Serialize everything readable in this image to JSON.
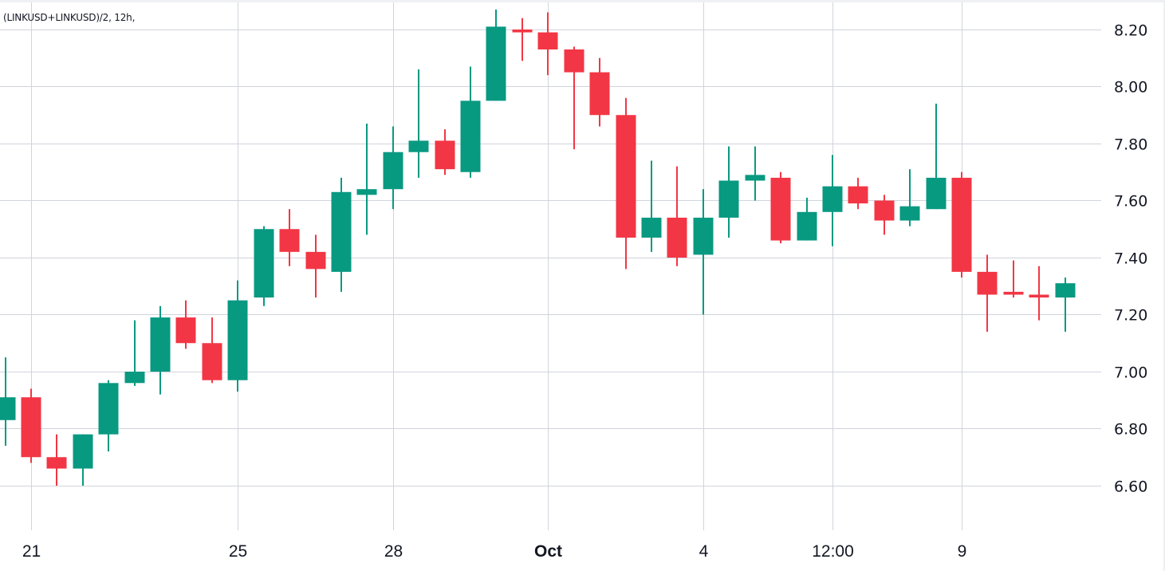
{
  "legend": {
    "title": "(LINKUSD+LINKUSD)/2, 12h,"
  },
  "colors": {
    "up": "#089981",
    "down": "#F23645",
    "grid": "#d1d4dc",
    "text": "#131722",
    "background": "#ffffff"
  },
  "chart_data": {
    "type": "candlestick",
    "title": "(LINKUSD+LINKUSD)/2, 12h",
    "interval": "12h",
    "xlabel": "",
    "ylabel": "",
    "ylim": [
      6.45,
      8.28
    ],
    "grid": true,
    "y_ticks": [
      "8.20",
      "8.00",
      "7.80",
      "7.60",
      "7.40",
      "7.20",
      "7.00",
      "6.80",
      "6.60"
    ],
    "x_ticks": [
      {
        "label": "21",
        "candle_index": 1,
        "bold": false
      },
      {
        "label": "25",
        "candle_index": 9,
        "bold": false
      },
      {
        "label": "28",
        "candle_index": 15,
        "bold": false
      },
      {
        "label": "Oct",
        "candle_index": 21,
        "bold": true
      },
      {
        "label": "4",
        "candle_index": 27,
        "bold": false
      },
      {
        "label": "12:00",
        "candle_index": 32,
        "bold": false
      },
      {
        "label": "9",
        "candle_index": 37,
        "bold": false
      }
    ],
    "candles": [
      {
        "o": 6.83,
        "h": 7.05,
        "l": 6.74,
        "c": 6.91
      },
      {
        "o": 6.91,
        "h": 6.94,
        "l": 6.68,
        "c": 6.7
      },
      {
        "o": 6.7,
        "h": 6.78,
        "l": 6.6,
        "c": 6.66
      },
      {
        "o": 6.66,
        "h": 6.78,
        "l": 6.6,
        "c": 6.78
      },
      {
        "o": 6.78,
        "h": 6.97,
        "l": 6.72,
        "c": 6.96
      },
      {
        "o": 6.96,
        "h": 7.18,
        "l": 6.95,
        "c": 7.0
      },
      {
        "o": 7.0,
        "h": 7.23,
        "l": 6.92,
        "c": 7.19
      },
      {
        "o": 7.19,
        "h": 7.25,
        "l": 7.08,
        "c": 7.1
      },
      {
        "o": 7.1,
        "h": 7.19,
        "l": 6.96,
        "c": 6.97
      },
      {
        "o": 6.97,
        "h": 7.32,
        "l": 6.93,
        "c": 7.25
      },
      {
        "o": 7.26,
        "h": 7.51,
        "l": 7.23,
        "c": 7.5
      },
      {
        "o": 7.5,
        "h": 7.57,
        "l": 7.37,
        "c": 7.42
      },
      {
        "o": 7.42,
        "h": 7.48,
        "l": 7.26,
        "c": 7.36
      },
      {
        "o": 7.35,
        "h": 7.68,
        "l": 7.28,
        "c": 7.63
      },
      {
        "o": 7.62,
        "h": 7.87,
        "l": 7.48,
        "c": 7.64
      },
      {
        "o": 7.64,
        "h": 7.86,
        "l": 7.57,
        "c": 7.77
      },
      {
        "o": 7.77,
        "h": 8.06,
        "l": 7.68,
        "c": 7.81
      },
      {
        "o": 7.81,
        "h": 7.85,
        "l": 7.69,
        "c": 7.71
      },
      {
        "o": 7.7,
        "h": 8.07,
        "l": 7.68,
        "c": 7.95
      },
      {
        "o": 7.95,
        "h": 8.27,
        "l": 7.95,
        "c": 8.21
      },
      {
        "o": 8.2,
        "h": 8.24,
        "l": 8.09,
        "c": 8.19
      },
      {
        "o": 8.19,
        "h": 8.26,
        "l": 8.04,
        "c": 8.13
      },
      {
        "o": 8.13,
        "h": 8.14,
        "l": 7.78,
        "c": 8.05
      },
      {
        "o": 8.05,
        "h": 8.1,
        "l": 7.86,
        "c": 7.9
      },
      {
        "o": 7.9,
        "h": 7.96,
        "l": 7.36,
        "c": 7.47
      },
      {
        "o": 7.47,
        "h": 7.74,
        "l": 7.42,
        "c": 7.54
      },
      {
        "o": 7.54,
        "h": 7.72,
        "l": 7.37,
        "c": 7.4
      },
      {
        "o": 7.41,
        "h": 7.64,
        "l": 7.2,
        "c": 7.54
      },
      {
        "o": 7.54,
        "h": 7.79,
        "l": 7.47,
        "c": 7.67
      },
      {
        "o": 7.67,
        "h": 7.79,
        "l": 7.6,
        "c": 7.69
      },
      {
        "o": 7.68,
        "h": 7.7,
        "l": 7.45,
        "c": 7.46
      },
      {
        "o": 7.46,
        "h": 7.61,
        "l": 7.46,
        "c": 7.56
      },
      {
        "o": 7.56,
        "h": 7.76,
        "l": 7.44,
        "c": 7.65
      },
      {
        "o": 7.65,
        "h": 7.68,
        "l": 7.57,
        "c": 7.59
      },
      {
        "o": 7.6,
        "h": 7.62,
        "l": 7.48,
        "c": 7.53
      },
      {
        "o": 7.53,
        "h": 7.71,
        "l": 7.51,
        "c": 7.58
      },
      {
        "o": 7.57,
        "h": 7.94,
        "l": 7.57,
        "c": 7.68
      },
      {
        "o": 7.68,
        "h": 7.7,
        "l": 7.33,
        "c": 7.35
      },
      {
        "o": 7.35,
        "h": 7.41,
        "l": 7.14,
        "c": 7.27
      },
      {
        "o": 7.28,
        "h": 7.39,
        "l": 7.26,
        "c": 7.27
      },
      {
        "o": 7.27,
        "h": 7.37,
        "l": 7.18,
        "c": 7.26
      },
      {
        "o": 7.26,
        "h": 7.33,
        "l": 7.14,
        "c": 7.31
      }
    ]
  }
}
